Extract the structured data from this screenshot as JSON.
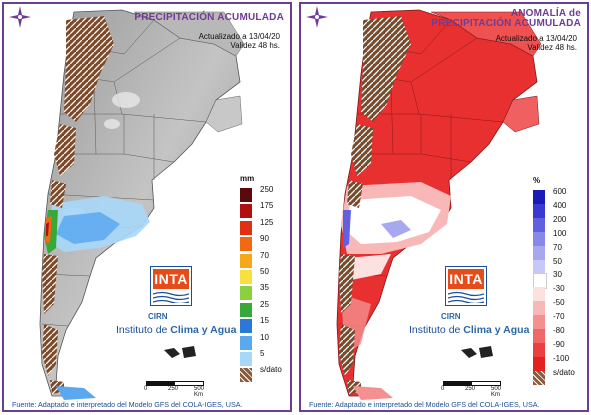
{
  "left": {
    "title_line1": "PRECIPITACIÓN ACUMULADA",
    "updated_line1": "Actualizado a 13/04/20",
    "updated_line2": "Validez 48 hs.",
    "legend_unit": "mm",
    "legend": [
      {
        "label": "250",
        "color": "#5a0a0a"
      },
      {
        "label": "175",
        "color": "#b01010"
      },
      {
        "label": "125",
        "color": "#e03010"
      },
      {
        "label": "90",
        "color": "#f26a10"
      },
      {
        "label": "70",
        "color": "#f6a818"
      },
      {
        "label": "50",
        "color": "#f8e040"
      },
      {
        "label": "35",
        "color": "#8ad040"
      },
      {
        "label": "25",
        "color": "#38a838"
      },
      {
        "label": "15",
        "color": "#2a78d8"
      },
      {
        "label": "10",
        "color": "#5aa8f0"
      },
      {
        "label": "5",
        "color": "#a8d8f8"
      },
      {
        "label": "s/dato",
        "color": "#8a5a3a"
      }
    ]
  },
  "right": {
    "title_line1": "ANOMALÍA de",
    "title_line2": "PRECIPITACIÓN ACUMULADA",
    "updated_line1": "Actualizado a 13/04/20",
    "updated_line2": "Validez 48 hs.",
    "legend_unit": "%",
    "legend": [
      {
        "label": "600",
        "color": "#1a1ab8"
      },
      {
        "label": "400",
        "color": "#3a3ad0"
      },
      {
        "label": "200",
        "color": "#6060e0"
      },
      {
        "label": "100",
        "color": "#8888e8"
      },
      {
        "label": "70",
        "color": "#a8a8f0"
      },
      {
        "label": "50",
        "color": "#c8c8f8"
      },
      {
        "label": "30",
        "color": "#ffffff"
      },
      {
        "label": "-30",
        "color": "#fde0e0"
      },
      {
        "label": "-50",
        "color": "#f8b8b8"
      },
      {
        "label": "-70",
        "color": "#f49090"
      },
      {
        "label": "-80",
        "color": "#ef6868"
      },
      {
        "label": "-90",
        "color": "#ea4040"
      },
      {
        "label": "-100",
        "color": "#e42020"
      },
      {
        "label": "s/dato",
        "color": "#8a5a3a"
      }
    ]
  },
  "logo": {
    "inta_text": "INTA",
    "cirn": "CIRN",
    "ica_prefix": "Instituto de ",
    "ica_bold": "Clima y Agua"
  },
  "scale": {
    "zero": "0",
    "mid": "250",
    "end": "500 Km"
  },
  "source": "Fuente: Adaptado e interpretado del Modelo GFS del COLA-IGES, USA.",
  "colors": {
    "brand_purple": "#6d3d96",
    "inta_orange": "#e84b1a",
    "ica_blue": "#1c4e9a"
  }
}
